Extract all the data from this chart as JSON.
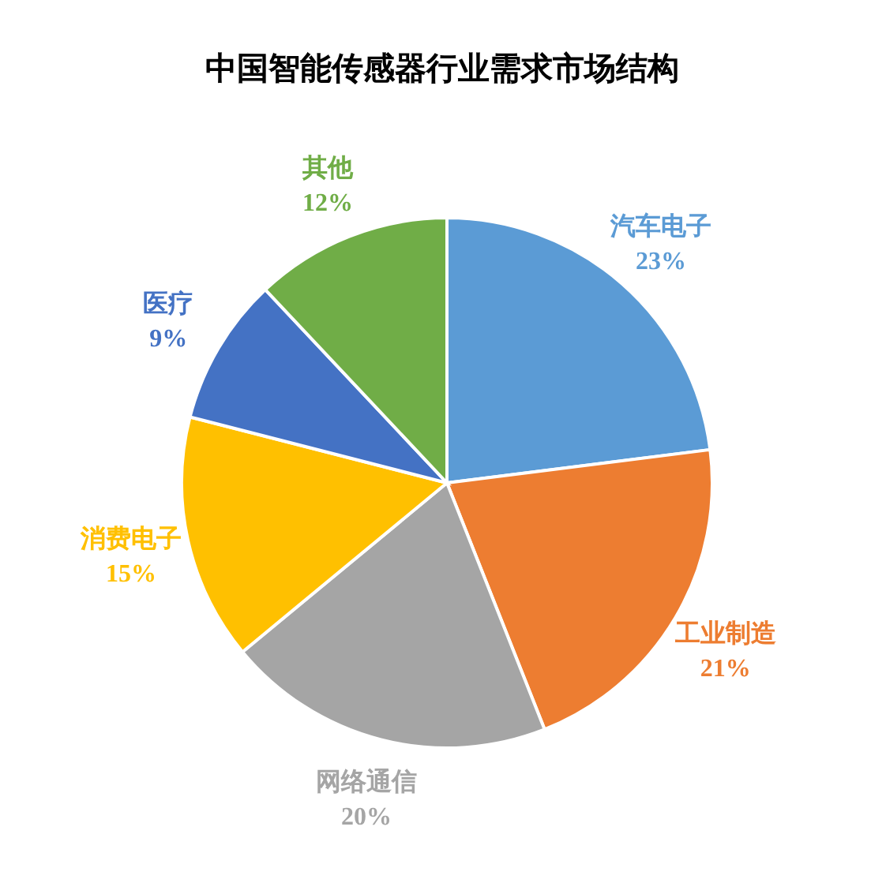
{
  "chart_data": {
    "type": "pie",
    "title": "中国智能传感器行业需求市场结构",
    "categories": [
      "汽车电子",
      "工业制造",
      "网络通信",
      "消费电子",
      "医疗",
      "其他"
    ],
    "values": [
      23,
      21,
      20,
      15,
      9,
      12
    ],
    "value_labels": [
      "23%",
      "21%",
      "20%",
      "15%",
      "9%",
      "12%"
    ],
    "colors": [
      "#5b9bd5",
      "#ed7d31",
      "#a5a5a5",
      "#ffc000",
      "#4472c4",
      "#70ad47"
    ]
  }
}
